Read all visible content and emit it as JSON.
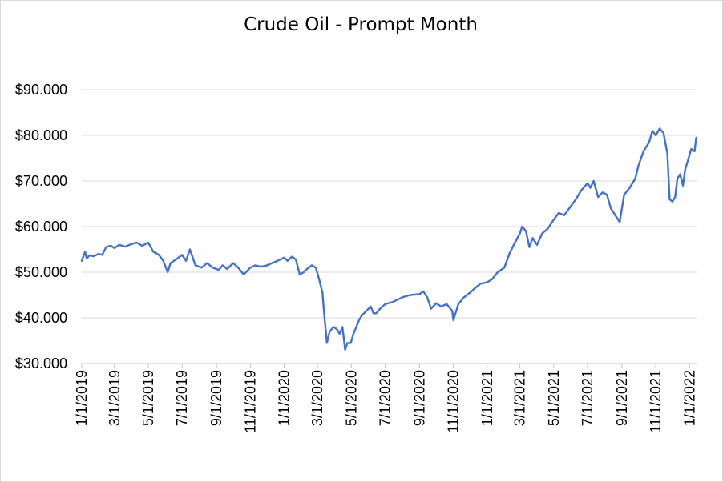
{
  "chart_data": {
    "type": "line",
    "title": "Crude Oil - Prompt Month",
    "xlabel": "",
    "ylabel": "",
    "ylim": [
      30,
      90
    ],
    "y_ticks": [
      "$30.000",
      "$40.000",
      "$50.000",
      "$60.000",
      "$70.000",
      "$80.000",
      "$90.000"
    ],
    "y_tick_values": [
      30,
      40,
      50,
      60,
      70,
      80,
      90
    ],
    "x_ticks": [
      "1/1/2019",
      "3/1/2019",
      "5/1/2019",
      "7/1/2019",
      "9/1/2019",
      "11/1/2019",
      "1/1/2020",
      "3/1/2020",
      "5/1/2020",
      "7/1/2020",
      "9/1/2020",
      "11/1/2020",
      "1/1/2021",
      "3/1/2021",
      "5/1/2021",
      "7/1/2021",
      "9/1/2021",
      "11/1/2021",
      "1/1/2022"
    ],
    "grid": "horizontal",
    "legend": "none",
    "color": "#4472C4",
    "series": [
      {
        "x": [
          "2019-01-01",
          "2019-01-07",
          "2019-01-10",
          "2019-01-15",
          "2019-01-22",
          "2019-01-31",
          "2019-02-07",
          "2019-02-14",
          "2019-02-22",
          "2019-03-01",
          "2019-03-10",
          "2019-03-20",
          "2019-04-01",
          "2019-04-10",
          "2019-04-20",
          "2019-05-01",
          "2019-05-10",
          "2019-05-20",
          "2019-05-28",
          "2019-06-05",
          "2019-06-10",
          "2019-06-20",
          "2019-07-01",
          "2019-07-08",
          "2019-07-15",
          "2019-07-25",
          "2019-08-05",
          "2019-08-15",
          "2019-08-25",
          "2019-09-05",
          "2019-09-12",
          "2019-09-20",
          "2019-10-01",
          "2019-10-10",
          "2019-10-20",
          "2019-11-01",
          "2019-11-10",
          "2019-11-20",
          "2019-12-01",
          "2019-12-10",
          "2019-12-20",
          "2020-01-01",
          "2020-01-07",
          "2020-01-15",
          "2020-01-22",
          "2020-01-29",
          "2020-02-05",
          "2020-02-12",
          "2020-02-20",
          "2020-02-27",
          "2020-03-04",
          "2020-03-10",
          "2020-03-13",
          "2020-03-18",
          "2020-03-23",
          "2020-03-30",
          "2020-04-05",
          "2020-04-10",
          "2020-04-15",
          "2020-04-20",
          "2020-04-24",
          "2020-04-30",
          "2020-05-05",
          "2020-05-10",
          "2020-05-15",
          "2020-05-20",
          "2020-05-28",
          "2020-06-05",
          "2020-06-10",
          "2020-06-15",
          "2020-06-22",
          "2020-07-01",
          "2020-07-15",
          "2020-08-01",
          "2020-08-15",
          "2020-09-01",
          "2020-09-08",
          "2020-09-15",
          "2020-09-22",
          "2020-10-01",
          "2020-10-10",
          "2020-10-20",
          "2020-10-30",
          "2020-11-01",
          "2020-11-05",
          "2020-11-10",
          "2020-11-20",
          "2020-12-01",
          "2020-12-10",
          "2020-12-20",
          "2021-01-01",
          "2021-01-10",
          "2021-01-20",
          "2021-02-01",
          "2021-02-10",
          "2021-02-20",
          "2021-03-01",
          "2021-03-05",
          "2021-03-12",
          "2021-03-18",
          "2021-03-24",
          "2021-04-01",
          "2021-04-10",
          "2021-04-20",
          "2021-05-01",
          "2021-05-10",
          "2021-05-20",
          "2021-06-01",
          "2021-06-10",
          "2021-06-20",
          "2021-07-01",
          "2021-07-06",
          "2021-07-12",
          "2021-07-20",
          "2021-07-28",
          "2021-08-05",
          "2021-08-12",
          "2021-08-20",
          "2021-08-28",
          "2021-09-05",
          "2021-09-15",
          "2021-09-25",
          "2021-10-01",
          "2021-10-10",
          "2021-10-20",
          "2021-10-26",
          "2021-11-01",
          "2021-11-08",
          "2021-11-15",
          "2021-11-22",
          "2021-11-26",
          "2021-12-01",
          "2021-12-06",
          "2021-12-10",
          "2021-12-15",
          "2021-12-20",
          "2021-12-24",
          "2021-12-29",
          "2022-01-04",
          "2022-01-10",
          "2022-01-13"
        ],
        "y": [
          52.5,
          54.5,
          53.0,
          53.7,
          53.5,
          54.0,
          53.8,
          55.5,
          55.8,
          55.3,
          56.0,
          55.6,
          56.2,
          56.5,
          55.8,
          56.5,
          54.5,
          53.8,
          52.5,
          50.0,
          52.0,
          52.8,
          53.8,
          52.5,
          55.0,
          51.5,
          51.0,
          52.0,
          51.0,
          50.5,
          51.5,
          50.7,
          52.0,
          51.0,
          49.5,
          51.0,
          51.5,
          51.2,
          51.5,
          52.0,
          52.5,
          53.2,
          52.5,
          53.4,
          52.8,
          49.5,
          50.0,
          50.8,
          51.5,
          51.0,
          48.5,
          45.5,
          41.0,
          34.5,
          37.0,
          38.0,
          37.5,
          36.5,
          38.0,
          33.0,
          34.5,
          34.5,
          36.5,
          38.0,
          39.5,
          40.5,
          41.5,
          42.5,
          41.0,
          41.0,
          42.0,
          43.0,
          43.5,
          44.5,
          45.0,
          45.2,
          45.8,
          44.5,
          42.0,
          43.2,
          42.5,
          43.0,
          41.5,
          39.5,
          41.0,
          43.0,
          44.5,
          45.5,
          46.5,
          47.5,
          47.8,
          48.5,
          50.0,
          51.0,
          54.0,
          56.5,
          58.5,
          60.0,
          59.0,
          55.5,
          57.5,
          56.0,
          58.5,
          59.5,
          61.5,
          63.0,
          62.5,
          64.5,
          66.0,
          68.0,
          69.5,
          68.5,
          70.0,
          66.5,
          67.5,
          67.0,
          64.0,
          62.5,
          61.0,
          67.0,
          68.5,
          70.5,
          73.5,
          76.5,
          78.5,
          81.0,
          80.0,
          81.5,
          80.5,
          76.0,
          66.0,
          65.5,
          66.5,
          70.5,
          71.5,
          69.0,
          72.5,
          74.5,
          77.0,
          76.5,
          79.5
        ]
      }
    ]
  }
}
